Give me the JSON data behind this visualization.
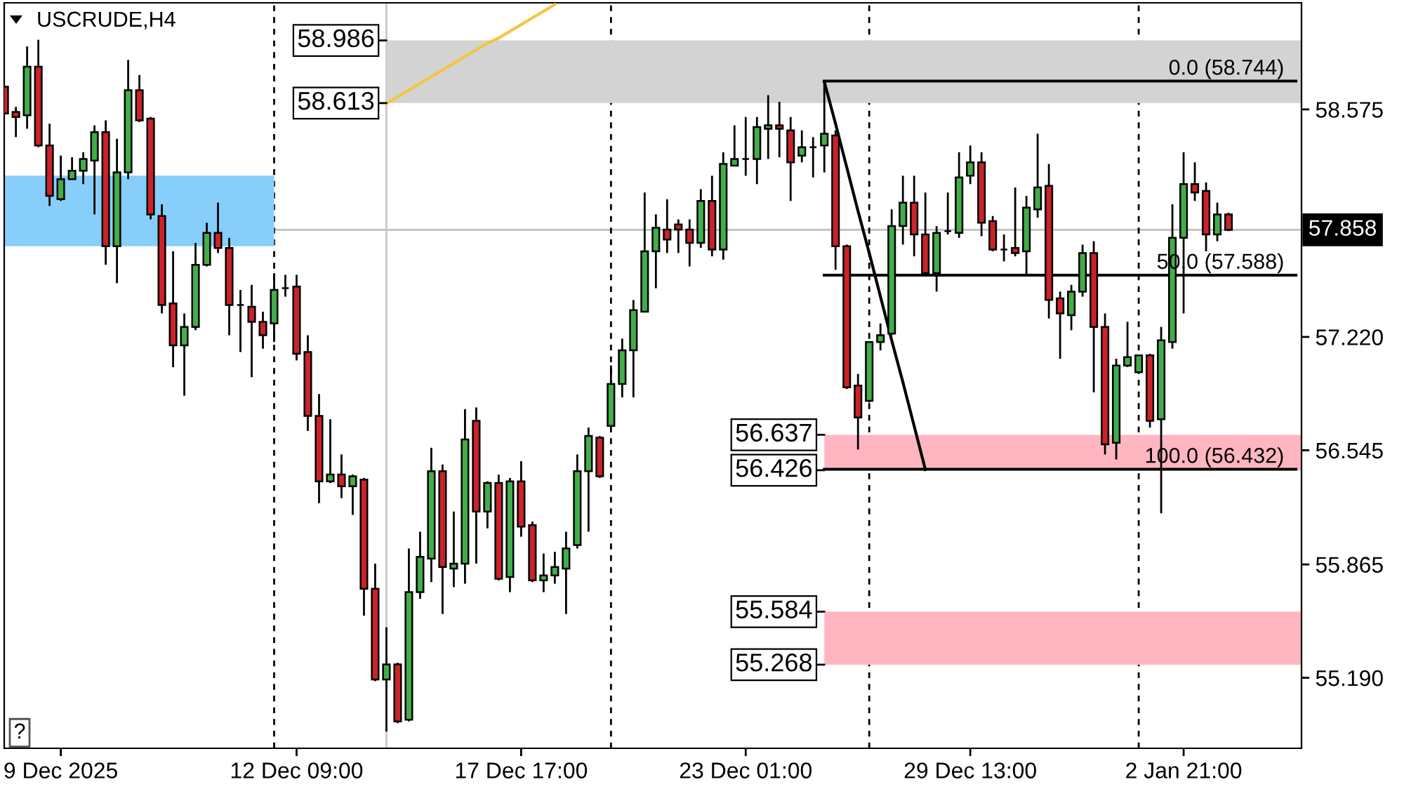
{
  "chart_data": {
    "type": "candlestick",
    "title": "USCRUDE,H4",
    "categories": [
      null,
      null,
      null,
      null,
      null,
      "9 Dec 2025",
      null,
      null,
      null,
      null,
      null,
      null,
      null,
      null,
      null,
      null,
      null,
      null,
      null,
      null,
      null,
      null,
      null,
      null,
      null,
      null,
      "12 Dec 09:00",
      null,
      null,
      null,
      null,
      null,
      null,
      null,
      null,
      null,
      null,
      null,
      null,
      null,
      null,
      null,
      null,
      null,
      null,
      null,
      "17 Dec 17:00",
      null,
      null,
      null,
      null,
      null,
      null,
      null,
      null,
      null,
      null,
      null,
      null,
      null,
      null,
      null,
      null,
      null,
      null,
      null,
      "23 Dec 01:00",
      null,
      null,
      null,
      null,
      null,
      null,
      null,
      null,
      null,
      null,
      null,
      null,
      null,
      null,
      null,
      null,
      null,
      null,
      null,
      "29 Dec 13:00",
      null,
      null,
      null,
      null,
      null,
      null,
      null,
      null,
      null,
      null,
      null,
      null,
      null,
      null,
      null,
      null,
      null,
      null,
      "2 Jan 21:00",
      null,
      null,
      null,
      null,
      null,
      null,
      null,
      null,
      null,
      null
    ],
    "ohlc": [
      [
        58.71,
        58.71,
        58.55,
        58.55
      ],
      [
        58.56,
        58.59,
        58.41,
        58.53
      ],
      [
        58.54,
        58.95,
        58.46,
        58.83
      ],
      [
        58.83,
        58.99,
        58.35,
        58.36
      ],
      [
        58.36,
        58.49,
        58.0,
        58.06
      ],
      [
        58.04,
        58.3,
        58.03,
        58.16
      ],
      [
        58.16,
        58.29,
        58.16,
        58.21
      ],
      [
        58.21,
        58.32,
        58.13,
        58.28
      ],
      [
        58.27,
        58.48,
        57.95,
        58.44
      ],
      [
        58.44,
        58.51,
        57.65,
        57.76
      ],
      [
        57.76,
        58.4,
        57.54,
        58.2
      ],
      [
        58.2,
        58.87,
        58.16,
        58.69
      ],
      [
        58.69,
        58.78,
        58.5,
        58.51
      ],
      [
        58.52,
        58.53,
        57.92,
        57.95
      ],
      [
        57.94,
        58.01,
        57.36,
        57.41
      ],
      [
        57.42,
        57.73,
        57.04,
        57.17
      ],
      [
        57.17,
        57.36,
        56.87,
        57.28
      ],
      [
        57.28,
        57.78,
        57.26,
        57.65
      ],
      [
        57.65,
        57.9,
        57.64,
        57.84
      ],
      [
        57.84,
        58.02,
        57.72,
        57.75
      ],
      [
        57.75,
        57.81,
        57.23,
        57.41
      ],
      [
        57.41,
        57.5,
        57.13,
        57.41
      ],
      [
        57.4,
        57.53,
        56.98,
        57.31
      ],
      [
        57.31,
        57.37,
        57.15,
        57.23
      ],
      [
        57.3,
        57.6,
        57.19,
        57.5
      ],
      [
        57.51,
        57.59,
        57.46,
        57.51
      ],
      [
        57.52,
        57.59,
        57.08,
        57.12
      ],
      [
        57.13,
        57.23,
        56.66,
        56.75
      ],
      [
        56.75,
        56.88,
        56.23,
        56.36
      ],
      [
        56.36,
        56.73,
        56.35,
        56.4
      ],
      [
        56.4,
        56.52,
        56.26,
        56.33
      ],
      [
        56.33,
        56.4,
        56.16,
        56.39
      ],
      [
        56.37,
        56.38,
        55.56,
        55.72
      ],
      [
        55.72,
        55.87,
        55.17,
        55.18
      ],
      [
        55.18,
        55.49,
        54.87,
        55.27
      ],
      [
        55.27,
        55.28,
        54.92,
        54.93
      ],
      [
        54.94,
        55.96,
        54.93,
        55.7
      ],
      [
        55.7,
        56.06,
        55.66,
        55.91
      ],
      [
        55.9,
        56.56,
        55.76,
        56.42
      ],
      [
        56.42,
        56.46,
        55.57,
        55.85
      ],
      [
        55.84,
        56.18,
        55.73,
        55.87
      ],
      [
        55.87,
        56.79,
        55.75,
        56.61
      ],
      [
        56.72,
        56.8,
        55.87,
        56.18
      ],
      [
        56.18,
        56.36,
        56.08,
        56.35
      ],
      [
        56.35,
        56.4,
        55.77,
        55.78
      ],
      [
        55.79,
        56.38,
        55.7,
        56.36
      ],
      [
        56.36,
        56.48,
        56.03,
        56.09
      ],
      [
        56.1,
        56.12,
        55.76,
        55.77
      ],
      [
        55.77,
        55.93,
        55.7,
        55.8
      ],
      [
        55.8,
        55.94,
        55.75,
        55.85
      ],
      [
        55.84,
        56.06,
        55.57,
        55.96
      ],
      [
        55.98,
        56.52,
        55.96,
        56.42
      ],
      [
        56.42,
        56.68,
        56.06,
        56.63
      ],
      [
        56.62,
        56.63,
        56.38,
        56.39
      ],
      [
        56.69,
        57.05,
        56.68,
        56.94
      ],
      [
        56.94,
        57.21,
        56.86,
        57.14
      ],
      [
        57.14,
        57.44,
        56.86,
        57.38
      ],
      [
        57.37,
        58.08,
        57.37,
        57.73
      ],
      [
        57.73,
        57.95,
        57.51,
        57.87
      ],
      [
        57.86,
        58.04,
        57.72,
        57.8
      ],
      [
        57.89,
        57.92,
        57.72,
        57.86
      ],
      [
        57.86,
        57.92,
        57.64,
        57.78
      ],
      [
        57.78,
        58.1,
        57.75,
        58.03
      ],
      [
        58.03,
        58.18,
        57.7,
        57.74
      ],
      [
        57.74,
        58.32,
        57.68,
        58.25
      ],
      [
        58.24,
        58.48,
        58.24,
        58.28
      ],
      [
        58.28,
        58.53,
        58.18,
        58.28
      ],
      [
        58.28,
        58.53,
        58.13,
        58.47
      ],
      [
        58.46,
        58.66,
        58.28,
        58.48
      ],
      [
        58.48,
        58.62,
        58.29,
        58.46
      ],
      [
        58.45,
        58.53,
        58.03,
        58.26
      ],
      [
        58.3,
        58.45,
        58.26,
        58.35
      ],
      [
        58.35,
        58.41,
        58.17,
        58.35
      ],
      [
        58.36,
        58.74,
        58.2,
        58.43
      ],
      [
        58.42,
        58.45,
        57.62,
        57.76
      ],
      [
        57.76,
        57.77,
        56.91,
        56.92
      ],
      [
        56.93,
        57.0,
        56.55,
        56.74
      ],
      [
        56.84,
        57.19,
        56.83,
        57.19
      ],
      [
        57.19,
        57.3,
        57.14,
        57.23
      ],
      [
        57.24,
        57.98,
        57.23,
        57.88
      ],
      [
        57.88,
        58.18,
        57.77,
        58.02
      ],
      [
        58.02,
        58.18,
        57.7,
        57.83
      ],
      [
        57.83,
        58.08,
        57.59,
        57.6
      ],
      [
        57.6,
        57.88,
        57.49,
        57.84
      ],
      [
        57.85,
        58.08,
        57.83,
        57.85
      ],
      [
        57.84,
        58.32,
        57.81,
        58.17
      ],
      [
        58.18,
        58.36,
        58.13,
        58.26
      ],
      [
        58.26,
        58.32,
        57.82,
        57.9
      ],
      [
        57.91,
        57.94,
        57.73,
        57.74
      ],
      [
        57.74,
        57.83,
        57.67,
        57.74
      ],
      [
        57.75,
        58.11,
        57.7,
        57.72
      ],
      [
        57.73,
        58.06,
        57.58,
        57.99
      ],
      [
        57.98,
        58.43,
        57.93,
        58.11
      ],
      [
        58.12,
        58.25,
        57.33,
        57.44
      ],
      [
        57.45,
        57.49,
        57.09,
        57.36
      ],
      [
        57.35,
        57.53,
        57.26,
        57.49
      ],
      [
        57.49,
        57.77,
        57.46,
        57.72
      ],
      [
        57.72,
        57.79,
        56.89,
        57.28
      ],
      [
        57.28,
        57.36,
        56.52,
        56.58
      ],
      [
        56.59,
        57.09,
        56.49,
        57.05
      ],
      [
        57.05,
        57.31,
        57.04,
        57.1
      ],
      [
        57.01,
        57.11,
        57.01,
        57.11
      ],
      [
        57.11,
        57.12,
        56.68,
        56.72
      ],
      [
        56.73,
        57.28,
        56.17,
        57.2
      ],
      [
        57.19,
        58.01,
        57.15,
        57.81
      ],
      [
        57.81,
        58.32,
        57.36,
        58.13
      ],
      [
        58.13,
        58.26,
        58.03,
        58.08
      ],
      [
        58.09,
        58.14,
        57.73,
        57.83
      ],
      [
        57.83,
        58.02,
        57.79,
        57.95
      ],
      [
        57.95,
        57.96,
        57.85,
        57.858
      ],
      null,
      null,
      null,
      null,
      null,
      null
    ],
    "colors": [
      "#cc2229",
      "#cc2229",
      "#42ad49",
      "#cc2229",
      "#cc2229",
      "#42ad49",
      "#42ad49",
      "#42ad49",
      "#42ad49",
      "#cc2229",
      "#42ad49",
      "#42ad49",
      "#cc2229",
      "#cc2229",
      "#cc2229",
      "#cc2229",
      "#42ad49",
      "#42ad49",
      "#42ad49",
      "#cc2229",
      "#cc2229",
      "#000000",
      "#cc2229",
      "#cc2229",
      "#42ad49",
      "#000000",
      "#cc2229",
      "#cc2229",
      "#cc2229",
      "#42ad49",
      "#cc2229",
      "#42ad49",
      "#cc2229",
      "#cc2229",
      "#42ad49",
      "#cc2229",
      "#42ad49",
      "#42ad49",
      "#42ad49",
      "#cc2229",
      "#42ad49",
      "#42ad49",
      "#cc2229",
      "#42ad49",
      "#cc2229",
      "#42ad49",
      "#cc2229",
      "#cc2229",
      "#42ad49",
      "#42ad49",
      "#42ad49",
      "#42ad49",
      "#42ad49",
      "#cc2229",
      "#42ad49",
      "#42ad49",
      "#42ad49",
      "#42ad49",
      "#42ad49",
      "#cc2229",
      "#cc2229",
      "#cc2229",
      "#42ad49",
      "#cc2229",
      "#42ad49",
      "#42ad49",
      "#000000",
      "#42ad49",
      "#42ad49",
      "#cc2229",
      "#cc2229",
      "#42ad49",
      "#000000",
      "#42ad49",
      "#cc2229",
      "#cc2229",
      "#cc2229",
      "#42ad49",
      "#42ad49",
      "#42ad49",
      "#42ad49",
      "#cc2229",
      "#cc2229",
      "#42ad49",
      "#000000",
      "#42ad49",
      "#42ad49",
      "#cc2229",
      "#cc2229",
      "#000000",
      "#cc2229",
      "#42ad49",
      "#42ad49",
      "#cc2229",
      "#cc2229",
      "#42ad49",
      "#42ad49",
      "#cc2229",
      "#cc2229",
      "#42ad49",
      "#42ad49",
      "#42ad49",
      "#cc2229",
      "#42ad49",
      "#42ad49",
      "#42ad49",
      "#cc2229",
      "#cc2229",
      "#42ad49",
      "#cc2229",
      null,
      null,
      null,
      null,
      null,
      null
    ],
    "ylim": [
      54.77,
      59.21
    ],
    "yticks": [
      58.575,
      {
        "value": 57.22,
        "label": "57.220"
      },
      56.545,
      55.865,
      {
        "value": 55.19,
        "label": "55.190"
      }
    ],
    "series": [
      {
        "type": "line",
        "color": "#f5c542",
        "values": [
          null,
          null,
          null,
          null,
          null,
          null,
          null,
          null,
          null,
          null,
          null,
          null,
          null,
          null,
          null,
          null,
          null,
          null,
          null,
          null,
          null,
          null,
          null,
          null,
          null,
          null,
          null,
          null,
          null,
          null,
          null,
          null,
          null,
          null,
          58.61,
          58.65,
          58.69,
          58.73,
          58.77,
          58.81,
          58.85,
          58.89,
          58.93,
          58.97,
          59.0,
          59.04,
          59.08,
          59.12,
          59.16,
          59.2,
          null,
          null,
          null,
          null,
          null,
          null,
          null,
          null,
          null,
          null,
          null,
          null,
          null,
          null,
          null,
          null,
          null,
          null,
          null,
          null,
          null,
          null,
          null,
          null,
          null,
          null,
          null,
          null,
          null,
          null,
          null,
          null,
          null,
          null,
          null,
          null,
          null,
          null,
          null,
          null,
          null,
          null,
          null,
          null,
          null,
          null,
          null,
          null,
          null,
          null,
          null,
          null,
          null,
          null,
          null,
          null,
          null,
          null,
          null,
          null,
          null,
          null,
          null,
          null,
          null,
          null
        ]
      },
      {
        "type": "line",
        "color": "#000000",
        "values": [
          null,
          null,
          null,
          null,
          null,
          null,
          null,
          null,
          null,
          null,
          null,
          null,
          null,
          null,
          null,
          null,
          null,
          null,
          null,
          null,
          null,
          null,
          null,
          null,
          null,
          null,
          null,
          null,
          null,
          null,
          null,
          null,
          null,
          null,
          null,
          null,
          null,
          null,
          null,
          null,
          null,
          null,
          null,
          null,
          null,
          null,
          null,
          null,
          null,
          null,
          null,
          null,
          null,
          null,
          null,
          null,
          null,
          null,
          null,
          null,
          null,
          null,
          null,
          null,
          null,
          null,
          null,
          null,
          null,
          null,
          null,
          null,
          null,
          58.74,
          58.49,
          58.23,
          57.97,
          57.72,
          57.46,
          57.2,
          56.95,
          56.69,
          56.43,
          null,
          null,
          null,
          null,
          null,
          null,
          null,
          null,
          null,
          null,
          null,
          null,
          null,
          null,
          null,
          null,
          null,
          null,
          null,
          null,
          null,
          null,
          null,
          null,
          null,
          null,
          null,
          null,
          null,
          null,
          null,
          null,
          null
        ]
      },
      {
        "type": "line",
        "name": "0.0 (58.744)",
        "color": "#000000",
        "values": [
          null,
          null,
          null,
          null,
          null,
          null,
          null,
          null,
          null,
          null,
          null,
          null,
          null,
          null,
          null,
          null,
          null,
          null,
          null,
          null,
          null,
          null,
          null,
          null,
          null,
          null,
          null,
          null,
          null,
          null,
          null,
          null,
          null,
          null,
          null,
          null,
          null,
          null,
          null,
          null,
          null,
          null,
          null,
          null,
          null,
          null,
          null,
          null,
          null,
          null,
          null,
          null,
          null,
          null,
          null,
          null,
          null,
          null,
          null,
          null,
          null,
          null,
          null,
          null,
          null,
          null,
          null,
          null,
          null,
          null,
          null,
          null,
          null,
          58.744,
          58.744,
          58.744,
          58.744,
          58.744,
          58.744,
          58.744,
          58.744,
          58.744,
          58.744,
          58.744,
          58.744,
          58.744,
          58.744,
          58.744,
          58.744,
          58.744,
          58.744,
          58.744,
          58.744,
          58.744,
          58.744,
          58.744,
          58.744,
          58.744,
          58.744,
          58.744,
          58.744,
          58.744,
          58.744,
          58.744,
          58.744,
          58.744,
          58.744,
          58.744,
          58.744,
          58.744,
          58.744,
          58.744,
          58.744,
          58.744,
          58.744,
          58.744
        ]
      },
      {
        "type": "line",
        "name": "50.0 (57.588)",
        "color": "#000000",
        "values": [
          null,
          null,
          null,
          null,
          null,
          null,
          null,
          null,
          null,
          null,
          null,
          null,
          null,
          null,
          null,
          null,
          null,
          null,
          null,
          null,
          null,
          null,
          null,
          null,
          null,
          null,
          null,
          null,
          null,
          null,
          null,
          null,
          null,
          null,
          null,
          null,
          null,
          null,
          null,
          null,
          null,
          null,
          null,
          null,
          null,
          null,
          null,
          null,
          null,
          null,
          null,
          null,
          null,
          null,
          null,
          null,
          null,
          null,
          null,
          null,
          null,
          null,
          null,
          null,
          null,
          null,
          null,
          null,
          null,
          null,
          null,
          null,
          null,
          57.588,
          57.588,
          57.588,
          57.588,
          57.588,
          57.588,
          57.588,
          57.588,
          57.588,
          57.588,
          57.588,
          57.588,
          57.588,
          57.588,
          57.588,
          57.588,
          57.588,
          57.588,
          57.588,
          57.588,
          57.588,
          57.588,
          57.588,
          57.588,
          57.588,
          57.588,
          57.588,
          57.588,
          57.588,
          57.588,
          57.588,
          57.588,
          57.588,
          57.588,
          57.588,
          57.588,
          57.588,
          57.588,
          57.588,
          57.588,
          57.588,
          57.588,
          57.588
        ]
      },
      {
        "type": "line",
        "name": "100.0 (56.432)",
        "color": "#000000",
        "values": [
          null,
          null,
          null,
          null,
          null,
          null,
          null,
          null,
          null,
          null,
          null,
          null,
          null,
          null,
          null,
          null,
          null,
          null,
          null,
          null,
          null,
          null,
          null,
          null,
          null,
          null,
          null,
          null,
          null,
          null,
          null,
          null,
          null,
          null,
          null,
          null,
          null,
          null,
          null,
          null,
          null,
          null,
          null,
          null,
          null,
          null,
          null,
          null,
          null,
          null,
          null,
          null,
          null,
          null,
          null,
          null,
          null,
          null,
          null,
          null,
          null,
          null,
          null,
          null,
          null,
          null,
          null,
          null,
          null,
          null,
          null,
          null,
          null,
          56.432,
          56.432,
          56.432,
          56.432,
          56.432,
          56.432,
          56.432,
          56.432,
          56.432,
          56.432,
          56.432,
          56.432,
          56.432,
          56.432,
          56.432,
          56.432,
          56.432,
          56.432,
          56.432,
          56.432,
          56.432,
          56.432,
          56.432,
          56.432,
          56.432,
          56.432,
          56.432,
          56.432,
          56.432,
          56.432,
          56.432,
          56.432,
          56.432,
          56.432,
          56.432,
          56.432,
          56.432,
          56.432,
          56.432,
          56.432,
          56.432,
          56.432,
          56.432
        ]
      }
    ],
    "bands": [
      {
        "axis": "y",
        "from": 58.613,
        "to": 58.986,
        "color": "#d3d3d3"
      },
      {
        "axis": "y",
        "from": 57.76,
        "to": 58.18,
        "color": "#87cefa"
      },
      {
        "axis": "y",
        "from": 56.426,
        "to": 56.637,
        "color": "#ffb6c1"
      },
      {
        "axis": "y",
        "from": 55.268,
        "to": 55.584,
        "color": "#ffb6c1"
      }
    ],
    "ref_lines": [
      {
        "axis": "y",
        "value": 57.858,
        "label": "57.858",
        "color": "#c0c0c0"
      }
    ],
    "annotations": [
      "58.986",
      "58.613",
      "56.637",
      "56.426",
      "55.584",
      "55.268",
      "?"
    ]
  }
}
